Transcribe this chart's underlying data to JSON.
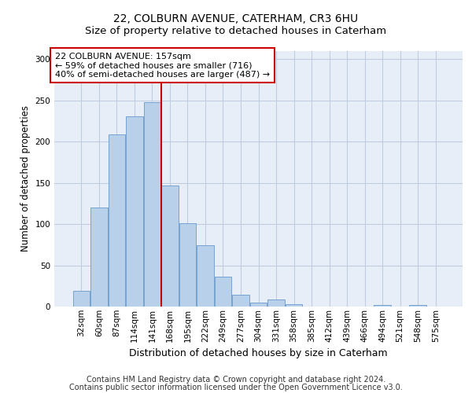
{
  "title_line1": "22, COLBURN AVENUE, CATERHAM, CR3 6HU",
  "title_line2": "Size of property relative to detached houses in Caterham",
  "xlabel": "Distribution of detached houses by size in Caterham",
  "ylabel": "Number of detached properties",
  "footer_line1": "Contains HM Land Registry data © Crown copyright and database right 2024.",
  "footer_line2": "Contains public sector information licensed under the Open Government Licence v3.0.",
  "annotation_line1": "22 COLBURN AVENUE: 157sqm",
  "annotation_line2": "← 59% of detached houses are smaller (716)",
  "annotation_line3": "40% of semi-detached houses are larger (487) →",
  "bar_labels": [
    "32sqm",
    "60sqm",
    "87sqm",
    "114sqm",
    "141sqm",
    "168sqm",
    "195sqm",
    "222sqm",
    "249sqm",
    "277sqm",
    "304sqm",
    "331sqm",
    "358sqm",
    "385sqm",
    "412sqm",
    "439sqm",
    "466sqm",
    "494sqm",
    "521sqm",
    "548sqm",
    "575sqm"
  ],
  "bar_values": [
    19,
    120,
    209,
    231,
    248,
    147,
    101,
    74,
    36,
    14,
    5,
    9,
    3,
    0,
    0,
    0,
    0,
    2,
    0,
    2,
    0
  ],
  "bar_color": "#b8d0ea",
  "bar_edge_color": "#6699cc",
  "property_line_index": 4.5,
  "ylim": [
    0,
    310
  ],
  "yticks": [
    0,
    50,
    100,
    150,
    200,
    250,
    300
  ],
  "background_color": "#e8eef8",
  "grid_color": "#c0cce0",
  "annotation_box_facecolor": "#ffffff",
  "annotation_box_edgecolor": "#cc0000",
  "property_line_color": "#cc0000",
  "title_fontsize": 10,
  "subtitle_fontsize": 9.5,
  "tick_fontsize": 7.5,
  "ylabel_fontsize": 8.5,
  "xlabel_fontsize": 9,
  "annotation_fontsize": 8,
  "footer_fontsize": 7
}
